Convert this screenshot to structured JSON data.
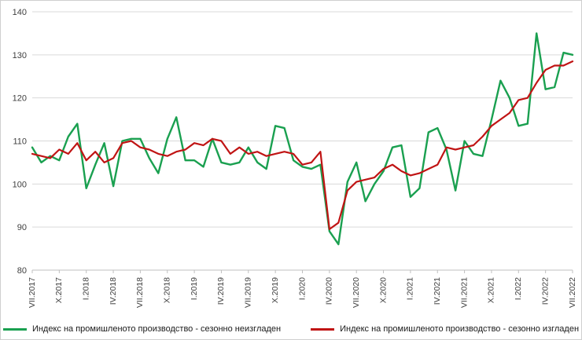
{
  "chart_data": {
    "type": "line",
    "title": "",
    "xlabel": "",
    "ylabel": "",
    "ylim": [
      80,
      140
    ],
    "ytick_step": 10,
    "grid": "horizontal",
    "legend_position": "bottom",
    "x_tick_every": 3,
    "categories": [
      "VII.2017",
      "VIII.2017",
      "IX.2017",
      "X.2017",
      "XI.2017",
      "XII.2017",
      "I.2018",
      "II.2018",
      "III.2018",
      "IV.2018",
      "V.2018",
      "VI.2018",
      "VII.2018",
      "VIII.2018",
      "IX.2018",
      "X.2018",
      "XI.2018",
      "XII.2018",
      "I.2019",
      "II.2019",
      "III.2019",
      "IV.2019",
      "V.2019",
      "VI.2019",
      "VII.2019",
      "VIII.2019",
      "IX.2019",
      "X.2019",
      "XI.2019",
      "XII.2019",
      "I.2020",
      "II.2020",
      "III.2020",
      "IV.2020",
      "V.2020",
      "VI.2020",
      "VII.2020",
      "VIII.2020",
      "IX.2020",
      "X.2020",
      "XI.2020",
      "XII.2020",
      "I.2021",
      "II.2021",
      "III.2021",
      "IV.2021",
      "V.2021",
      "VI.2021",
      "VII.2021",
      "VIII.2021",
      "IX.2021",
      "X.2021",
      "XI.2021",
      "XII.2021",
      "I.2022",
      "II.2022",
      "III.2022",
      "IV.2022",
      "V.2022",
      "VI.2022",
      "VII.2022"
    ],
    "series": [
      {
        "name": "Индекс на промишленото производство - сезонно неизгладен",
        "color": "#1aa050",
        "values": [
          108.5,
          105,
          106.5,
          105.5,
          111,
          114,
          99,
          104.5,
          109.5,
          99.5,
          110,
          110.5,
          110.5,
          106,
          102.5,
          110.5,
          115.5,
          105.5,
          105.5,
          104,
          110.5,
          105,
          104.5,
          105,
          108.5,
          105,
          103.5,
          113.5,
          113,
          105.5,
          104,
          103.5,
          104.5,
          89,
          86,
          100.5,
          105,
          96,
          100,
          103,
          108.5,
          109,
          97,
          99,
          112,
          113,
          108,
          98.5,
          110,
          107,
          106.5,
          115,
          124,
          120,
          113.5,
          114,
          135,
          122,
          122.5,
          130.5,
          130
        ]
      },
      {
        "name": "Индекс на промишленото производство - сезонно изгладен",
        "color": "#c01414",
        "values": [
          107,
          106.5,
          106,
          108,
          107,
          109.5,
          105.5,
          107.5,
          105,
          106,
          109.5,
          110,
          108.5,
          108,
          107,
          106.5,
          107.5,
          108,
          109.5,
          109,
          110.5,
          110,
          107,
          108.5,
          107,
          107.5,
          106.5,
          107,
          107.5,
          107,
          104.5,
          105,
          107.5,
          89.5,
          91,
          98.5,
          100.5,
          101,
          101.5,
          103.5,
          104.5,
          103,
          102,
          102.5,
          103.5,
          104.5,
          108.5,
          108,
          108.5,
          109,
          111,
          113.5,
          115,
          116.5,
          119.5,
          120,
          123.5,
          126.5,
          127.5,
          127.5,
          128.5
        ]
      }
    ],
    "style": {
      "gridline_color": "#d9d9d9",
      "axis_color": "#bfbfbf",
      "tick_label_color": "#404040"
    }
  }
}
